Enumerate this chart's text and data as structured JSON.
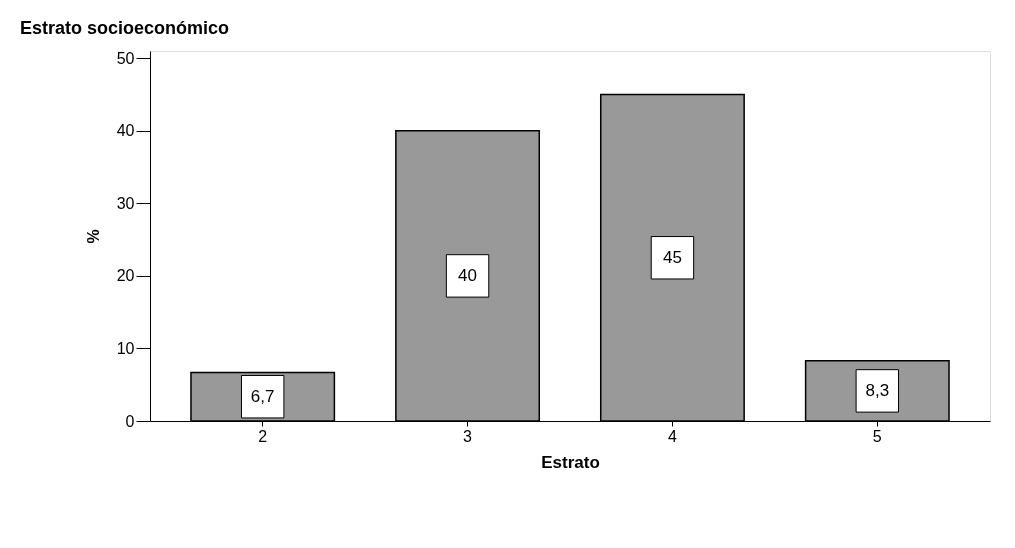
{
  "chart_data": {
    "type": "bar",
    "title": "Estrato socioeconómico",
    "xlabel": "Estrato",
    "ylabel": "%",
    "categories": [
      "2",
      "3",
      "4",
      "5"
    ],
    "values": [
      6.7,
      40,
      45,
      8.3
    ],
    "value_labels": [
      "6,7",
      "40",
      "45",
      "8,3"
    ],
    "color": "#999999",
    "ylim": [
      0,
      51
    ],
    "yticks": [
      0,
      10,
      20,
      30,
      40,
      50
    ],
    "grid": false
  }
}
